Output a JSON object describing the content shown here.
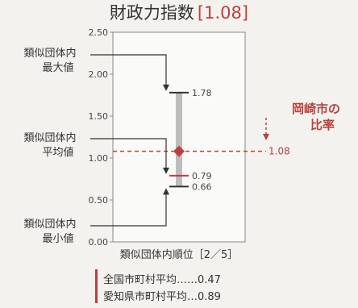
{
  "chart_data": {
    "type": "range",
    "title": "財政力指数",
    "title_value": "[1.08]",
    "xlabel": "類似団体内順位［2／5］",
    "ylim": [
      0,
      2.5
    ],
    "yticks": [
      "0.00",
      "0.50",
      "1.00",
      "1.50",
      "2.00",
      "2.50"
    ],
    "max": {
      "value": 1.78,
      "label": "1.78",
      "annotation": [
        "類似団体内",
        "最大値"
      ]
    },
    "average": {
      "value": 0.79,
      "label": "0.79",
      "annotation": [
        "類似団体内",
        "平均値"
      ]
    },
    "min": {
      "value": 0.66,
      "label": "0.66",
      "annotation": [
        "類似団体内",
        "最小値"
      ]
    },
    "city": {
      "value": 1.08,
      "label": "1.08",
      "annotation": [
        "岡崎市の",
        "比率"
      ]
    },
    "legend": [
      {
        "label": "全国市町村平均……0.47"
      },
      {
        "label": "愛知県市町村平均…0.89"
      }
    ],
    "colors": {
      "accent": "#b9413f",
      "bar": "#bdbdbd",
      "text": "#333333"
    }
  }
}
